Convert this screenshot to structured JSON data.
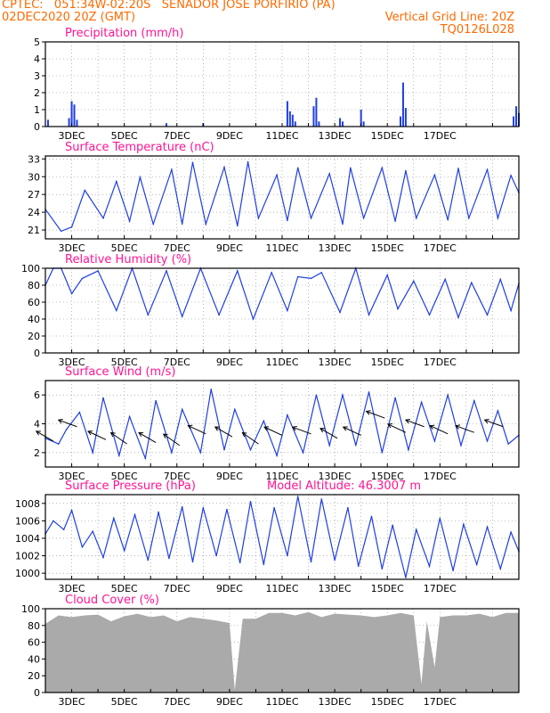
{
  "header": {
    "line1_left": "CPTEC:   051:34W-02:20S   SENADOR JOSE PORFIRIO (PA)",
    "line2_left": "02DEC2020 20Z (GMT)",
    "line2_right": "Vertical Grid Line: 20Z",
    "line3_right": "TQ0126L028"
  },
  "colors": {
    "header": "#ff6a00",
    "panel_title": "#ff1493",
    "line": "#1f3fe0",
    "cloud": "#aaaaaa",
    "grid": "#888888"
  },
  "chart_data": [
    {
      "type": "bar",
      "title": "Precipitation (mm/h)",
      "ylim": [
        0,
        5
      ],
      "yticks": [
        0,
        1,
        2,
        3,
        4,
        5
      ],
      "xticks": [
        "3DEC",
        "5DEC",
        "7DEC",
        "9DEC",
        "11DEC",
        "13DEC",
        "15DEC",
        "17DEC"
      ],
      "grid": true,
      "x": [
        0.1,
        0.9,
        1.0,
        1.1,
        1.2,
        4.6,
        6.0,
        9.2,
        9.3,
        9.4,
        9.5,
        10.2,
        10.3,
        10.4,
        11.2,
        11.3,
        12.0,
        12.1,
        13.5,
        13.6,
        13.7,
        17.8,
        17.9,
        18.0
      ],
      "values": [
        0.4,
        0.5,
        1.5,
        1.3,
        0.4,
        0.2,
        0.2,
        1.5,
        0.9,
        0.7,
        0.3,
        1.2,
        1.7,
        0.3,
        0.5,
        0.3,
        1.0,
        0.3,
        0.6,
        2.6,
        1.1,
        0.6,
        1.2,
        0.8
      ]
    },
    {
      "type": "line",
      "title": "Surface Temperature (nC)",
      "ylim": [
        19.5,
        33.5
      ],
      "yticks": [
        21,
        24,
        27,
        30,
        33
      ],
      "xticks": [
        "3DEC",
        "5DEC",
        "7DEC",
        "9DEC",
        "11DEC",
        "13DEC",
        "15DEC",
        "17DEC"
      ],
      "grid": true,
      "x": [
        0.0,
        0.6,
        1.0,
        1.5,
        2.2,
        2.7,
        3.2,
        3.6,
        4.1,
        4.8,
        5.2,
        5.6,
        6.1,
        6.8,
        7.3,
        7.7,
        8.1,
        8.8,
        9.2,
        9.6,
        10.1,
        10.8,
        11.3,
        11.6,
        12.1,
        12.8,
        13.3,
        13.7,
        14.1,
        14.8,
        15.3,
        15.7,
        16.1,
        16.8,
        17.2,
        17.7,
        18.0
      ],
      "values": [
        24.5,
        20.8,
        21.5,
        27.7,
        23.0,
        29.2,
        22.5,
        29.9,
        22.0,
        31.2,
        22.0,
        32.4,
        22.0,
        31.6,
        21.7,
        32.5,
        23.0,
        30.3,
        22.6,
        31.5,
        23.0,
        30.5,
        22.0,
        31.5,
        23.0,
        31.5,
        22.5,
        31.0,
        23.0,
        30.3,
        22.7,
        31.4,
        23.0,
        31.2,
        23.0,
        30.2,
        27.3
      ]
    },
    {
      "type": "line",
      "title": "Relative Humidity (%)",
      "ylim": [
        0,
        100
      ],
      "yticks": [
        0,
        20,
        40,
        60,
        80,
        100
      ],
      "xticks": [
        "3DEC",
        "5DEC",
        "7DEC",
        "9DEC",
        "11DEC",
        "13DEC",
        "15DEC",
        "17DEC"
      ],
      "grid": true,
      "x": [
        0.0,
        0.3,
        0.6,
        1.0,
        1.4,
        2.0,
        2.7,
        3.3,
        3.9,
        4.6,
        5.2,
        5.9,
        6.6,
        7.3,
        7.9,
        8.6,
        9.2,
        9.6,
        10.1,
        10.5,
        11.2,
        11.8,
        12.3,
        13.0,
        13.4,
        14.0,
        14.6,
        15.2,
        15.7,
        16.2,
        16.8,
        17.3,
        17.7,
        18.0
      ],
      "values": [
        80,
        100,
        100,
        70,
        88,
        97,
        50,
        100,
        45,
        97,
        43,
        100,
        45,
        97,
        40,
        95,
        50,
        90,
        88,
        95,
        48,
        100,
        45,
        92,
        52,
        85,
        45,
        87,
        42,
        83,
        45,
        87,
        50,
        82
      ]
    },
    {
      "type": "line",
      "title": "Surface Wind (m/s)",
      "ylim": [
        1,
        7
      ],
      "yticks": [
        2,
        4,
        6
      ],
      "xticks": [
        "3DEC",
        "5DEC",
        "7DEC",
        "9DEC",
        "11DEC",
        "13DEC",
        "15DEC",
        "17DEC"
      ],
      "grid": true,
      "x": [
        0.0,
        0.5,
        0.8,
        1.3,
        1.8,
        2.2,
        2.8,
        3.2,
        3.8,
        4.2,
        4.8,
        5.2,
        5.9,
        6.3,
        6.8,
        7.2,
        7.8,
        8.3,
        8.8,
        9.2,
        9.8,
        10.3,
        10.8,
        11.3,
        11.8,
        12.3,
        12.8,
        13.3,
        13.8,
        14.3,
        14.8,
        15.3,
        15.8,
        16.3,
        16.8,
        17.2,
        17.6,
        18.0
      ],
      "values": [
        3.0,
        2.6,
        3.6,
        4.8,
        2.0,
        5.8,
        1.8,
        4.5,
        1.6,
        5.6,
        2.0,
        5.0,
        2.0,
        6.4,
        2.2,
        5.0,
        2.2,
        4.2,
        1.8,
        4.6,
        2.0,
        6.0,
        2.5,
        6.0,
        2.5,
        6.2,
        2.0,
        5.8,
        2.2,
        5.5,
        2.8,
        6.0,
        2.5,
        5.6,
        2.8,
        4.9,
        2.6,
        3.2
      ],
      "vectors": [
        {
          "x": 0.3,
          "y": 2.8,
          "angle": 210
        },
        {
          "x": 1.2,
          "y": 3.8,
          "angle": 200
        },
        {
          "x": 2.3,
          "y": 2.9,
          "angle": 205
        },
        {
          "x": 3.1,
          "y": 2.6,
          "angle": 215
        },
        {
          "x": 4.2,
          "y": 2.7,
          "angle": 210
        },
        {
          "x": 5.1,
          "y": 2.5,
          "angle": 215
        },
        {
          "x": 6.1,
          "y": 3.3,
          "angle": 205
        },
        {
          "x": 7.1,
          "y": 3.1,
          "angle": 210
        },
        {
          "x": 8.1,
          "y": 2.6,
          "angle": 215
        },
        {
          "x": 9.0,
          "y": 3.2,
          "angle": 205
        },
        {
          "x": 10.1,
          "y": 3.3,
          "angle": 200
        },
        {
          "x": 11.1,
          "y": 3.0,
          "angle": 210
        },
        {
          "x": 12.0,
          "y": 3.2,
          "angle": 205
        },
        {
          "x": 12.9,
          "y": 4.4,
          "angle": 200
        },
        {
          "x": 13.7,
          "y": 3.4,
          "angle": 205
        },
        {
          "x": 14.4,
          "y": 3.8,
          "angle": 200
        },
        {
          "x": 15.3,
          "y": 3.3,
          "angle": 205
        },
        {
          "x": 16.3,
          "y": 3.4,
          "angle": 200
        },
        {
          "x": 17.4,
          "y": 3.8,
          "angle": 200
        }
      ]
    },
    {
      "type": "line",
      "title": "Surface Pressure (hPa)",
      "annotation": "Model Altitude: 46.3007 m",
      "ylim": [
        999.3,
        1009
      ],
      "yticks": [
        1000,
        1002,
        1004,
        1006,
        1008
      ],
      "xticks": [
        "3DEC",
        "5DEC",
        "7DEC",
        "9DEC",
        "11DEC",
        "13DEC",
        "15DEC",
        "17DEC"
      ],
      "grid": true,
      "x": [
        0.0,
        0.3,
        0.7,
        1.0,
        1.4,
        1.8,
        2.2,
        2.6,
        3.0,
        3.4,
        3.9,
        4.3,
        4.7,
        5.2,
        5.6,
        6.0,
        6.5,
        6.9,
        7.4,
        7.8,
        8.3,
        8.7,
        9.2,
        9.6,
        10.1,
        10.5,
        11.0,
        11.5,
        11.9,
        12.4,
        12.8,
        13.2,
        13.7,
        14.1,
        14.6,
        15.0,
        15.5,
        15.9,
        16.4,
        16.8,
        17.3,
        17.7,
        18.0
      ],
      "values": [
        1004.5,
        1006.0,
        1005.0,
        1007.2,
        1003.0,
        1004.8,
        1001.8,
        1006.3,
        1002.6,
        1006.7,
        1001.5,
        1007.0,
        1001.7,
        1007.6,
        1001.3,
        1007.5,
        1002.0,
        1007.3,
        1001.2,
        1008.2,
        1001.0,
        1007.5,
        1002.0,
        1008.8,
        1001.3,
        1008.5,
        1001.5,
        1007.5,
        1000.8,
        1006.5,
        1000.5,
        1005.5,
        999.5,
        1005.0,
        1000.8,
        1006.3,
        1000.3,
        1005.6,
        1001.0,
        1005.3,
        1000.5,
        1004.7,
        1002.5
      ]
    },
    {
      "type": "area",
      "title": "Cloud Cover (%)",
      "ylim": [
        0,
        100
      ],
      "yticks": [
        0,
        20,
        40,
        60,
        80,
        100
      ],
      "xticks": [
        "3DEC",
        "5DEC",
        "7DEC",
        "9DEC",
        "11DEC",
        "13DEC",
        "15DEC",
        "17DEC"
      ],
      "grid": true,
      "x": [
        0.0,
        0.5,
        1.0,
        1.5,
        2.0,
        2.5,
        3.0,
        3.5,
        4.0,
        4.5,
        5.0,
        5.5,
        6.0,
        6.5,
        7.0,
        7.2,
        7.5,
        8.0,
        8.5,
        9.0,
        9.5,
        10.0,
        10.5,
        11.0,
        11.5,
        12.0,
        12.5,
        13.0,
        13.5,
        14.0,
        14.3,
        14.5,
        14.8,
        15.0,
        15.5,
        16.0,
        16.5,
        17.0,
        17.5,
        18.0
      ],
      "values": [
        82,
        92,
        90,
        92,
        93,
        85,
        91,
        94,
        90,
        92,
        85,
        90,
        88,
        86,
        83,
        3,
        88,
        88,
        95,
        95,
        92,
        96,
        90,
        94,
        93,
        92,
        90,
        92,
        95,
        92,
        10,
        85,
        30,
        90,
        92,
        92,
        94,
        90,
        95,
        95
      ]
    }
  ]
}
